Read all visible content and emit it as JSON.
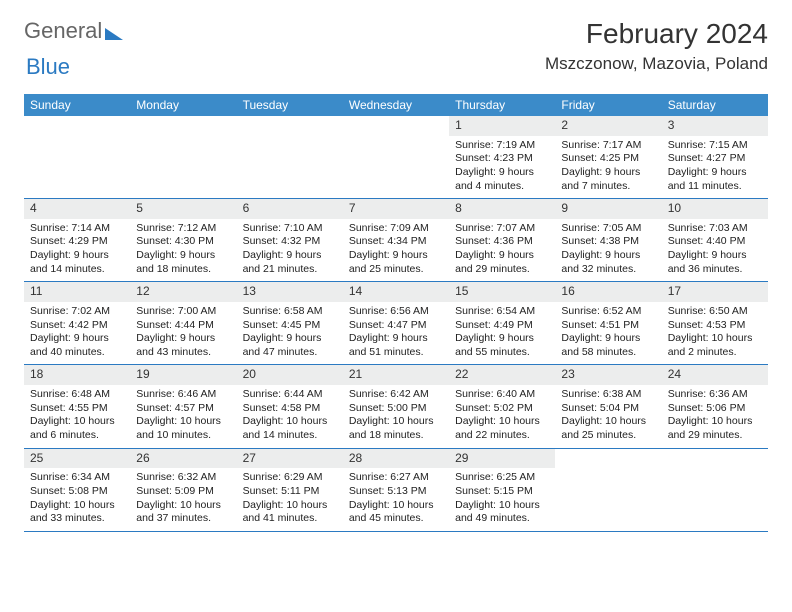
{
  "logo": {
    "text1": "General",
    "text2": "Blue"
  },
  "title": "February 2024",
  "location": "Mszczonow, Mazovia, Poland",
  "weekdays": [
    "Sunday",
    "Monday",
    "Tuesday",
    "Wednesday",
    "Thursday",
    "Friday",
    "Saturday"
  ],
  "colors": {
    "header_bg": "#3b8bc9",
    "week_border": "#2b7ac2",
    "daynum_bg": "#eceded",
    "text": "#222222",
    "logo_blue": "#2b7ac2"
  },
  "weeks": [
    [
      {
        "n": "",
        "sr": "",
        "ss": "",
        "dl": "",
        "empty": true
      },
      {
        "n": "",
        "sr": "",
        "ss": "",
        "dl": "",
        "empty": true
      },
      {
        "n": "",
        "sr": "",
        "ss": "",
        "dl": "",
        "empty": true
      },
      {
        "n": "",
        "sr": "",
        "ss": "",
        "dl": "",
        "empty": true
      },
      {
        "n": "1",
        "sr": "Sunrise: 7:19 AM",
        "ss": "Sunset: 4:23 PM",
        "dl": "Daylight: 9 hours and 4 minutes."
      },
      {
        "n": "2",
        "sr": "Sunrise: 7:17 AM",
        "ss": "Sunset: 4:25 PM",
        "dl": "Daylight: 9 hours and 7 minutes."
      },
      {
        "n": "3",
        "sr": "Sunrise: 7:15 AM",
        "ss": "Sunset: 4:27 PM",
        "dl": "Daylight: 9 hours and 11 minutes."
      }
    ],
    [
      {
        "n": "4",
        "sr": "Sunrise: 7:14 AM",
        "ss": "Sunset: 4:29 PM",
        "dl": "Daylight: 9 hours and 14 minutes."
      },
      {
        "n": "5",
        "sr": "Sunrise: 7:12 AM",
        "ss": "Sunset: 4:30 PM",
        "dl": "Daylight: 9 hours and 18 minutes."
      },
      {
        "n": "6",
        "sr": "Sunrise: 7:10 AM",
        "ss": "Sunset: 4:32 PM",
        "dl": "Daylight: 9 hours and 21 minutes."
      },
      {
        "n": "7",
        "sr": "Sunrise: 7:09 AM",
        "ss": "Sunset: 4:34 PM",
        "dl": "Daylight: 9 hours and 25 minutes."
      },
      {
        "n": "8",
        "sr": "Sunrise: 7:07 AM",
        "ss": "Sunset: 4:36 PM",
        "dl": "Daylight: 9 hours and 29 minutes."
      },
      {
        "n": "9",
        "sr": "Sunrise: 7:05 AM",
        "ss": "Sunset: 4:38 PM",
        "dl": "Daylight: 9 hours and 32 minutes."
      },
      {
        "n": "10",
        "sr": "Sunrise: 7:03 AM",
        "ss": "Sunset: 4:40 PM",
        "dl": "Daylight: 9 hours and 36 minutes."
      }
    ],
    [
      {
        "n": "11",
        "sr": "Sunrise: 7:02 AM",
        "ss": "Sunset: 4:42 PM",
        "dl": "Daylight: 9 hours and 40 minutes."
      },
      {
        "n": "12",
        "sr": "Sunrise: 7:00 AM",
        "ss": "Sunset: 4:44 PM",
        "dl": "Daylight: 9 hours and 43 minutes."
      },
      {
        "n": "13",
        "sr": "Sunrise: 6:58 AM",
        "ss": "Sunset: 4:45 PM",
        "dl": "Daylight: 9 hours and 47 minutes."
      },
      {
        "n": "14",
        "sr": "Sunrise: 6:56 AM",
        "ss": "Sunset: 4:47 PM",
        "dl": "Daylight: 9 hours and 51 minutes."
      },
      {
        "n": "15",
        "sr": "Sunrise: 6:54 AM",
        "ss": "Sunset: 4:49 PM",
        "dl": "Daylight: 9 hours and 55 minutes."
      },
      {
        "n": "16",
        "sr": "Sunrise: 6:52 AM",
        "ss": "Sunset: 4:51 PM",
        "dl": "Daylight: 9 hours and 58 minutes."
      },
      {
        "n": "17",
        "sr": "Sunrise: 6:50 AM",
        "ss": "Sunset: 4:53 PM",
        "dl": "Daylight: 10 hours and 2 minutes."
      }
    ],
    [
      {
        "n": "18",
        "sr": "Sunrise: 6:48 AM",
        "ss": "Sunset: 4:55 PM",
        "dl": "Daylight: 10 hours and 6 minutes."
      },
      {
        "n": "19",
        "sr": "Sunrise: 6:46 AM",
        "ss": "Sunset: 4:57 PM",
        "dl": "Daylight: 10 hours and 10 minutes."
      },
      {
        "n": "20",
        "sr": "Sunrise: 6:44 AM",
        "ss": "Sunset: 4:58 PM",
        "dl": "Daylight: 10 hours and 14 minutes."
      },
      {
        "n": "21",
        "sr": "Sunrise: 6:42 AM",
        "ss": "Sunset: 5:00 PM",
        "dl": "Daylight: 10 hours and 18 minutes."
      },
      {
        "n": "22",
        "sr": "Sunrise: 6:40 AM",
        "ss": "Sunset: 5:02 PM",
        "dl": "Daylight: 10 hours and 22 minutes."
      },
      {
        "n": "23",
        "sr": "Sunrise: 6:38 AM",
        "ss": "Sunset: 5:04 PM",
        "dl": "Daylight: 10 hours and 25 minutes."
      },
      {
        "n": "24",
        "sr": "Sunrise: 6:36 AM",
        "ss": "Sunset: 5:06 PM",
        "dl": "Daylight: 10 hours and 29 minutes."
      }
    ],
    [
      {
        "n": "25",
        "sr": "Sunrise: 6:34 AM",
        "ss": "Sunset: 5:08 PM",
        "dl": "Daylight: 10 hours and 33 minutes."
      },
      {
        "n": "26",
        "sr": "Sunrise: 6:32 AM",
        "ss": "Sunset: 5:09 PM",
        "dl": "Daylight: 10 hours and 37 minutes."
      },
      {
        "n": "27",
        "sr": "Sunrise: 6:29 AM",
        "ss": "Sunset: 5:11 PM",
        "dl": "Daylight: 10 hours and 41 minutes."
      },
      {
        "n": "28",
        "sr": "Sunrise: 6:27 AM",
        "ss": "Sunset: 5:13 PM",
        "dl": "Daylight: 10 hours and 45 minutes."
      },
      {
        "n": "29",
        "sr": "Sunrise: 6:25 AM",
        "ss": "Sunset: 5:15 PM",
        "dl": "Daylight: 10 hours and 49 minutes."
      },
      {
        "n": "",
        "sr": "",
        "ss": "",
        "dl": "",
        "empty": true
      },
      {
        "n": "",
        "sr": "",
        "ss": "",
        "dl": "",
        "empty": true
      }
    ]
  ]
}
